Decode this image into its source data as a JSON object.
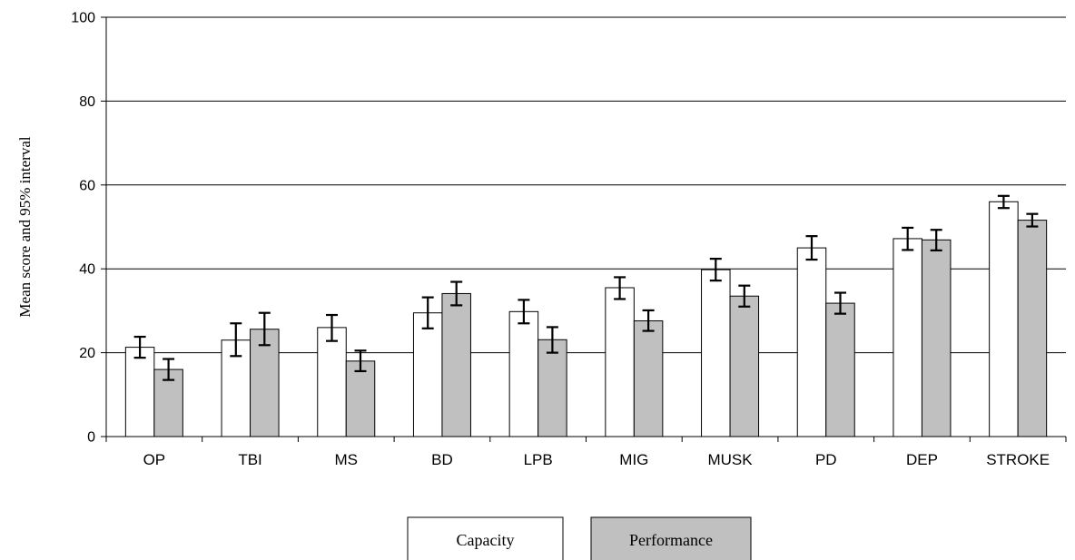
{
  "chart_data": {
    "type": "bar",
    "ylabel": "Mean score and 95% interval",
    "ylim": [
      0,
      100
    ],
    "yticks": [
      0,
      20,
      40,
      60,
      80,
      100
    ],
    "grid": "horizontal",
    "legend_position": "bottom-center",
    "categories": [
      "OP",
      "TBI",
      "MS",
      "BD",
      "LPB",
      "MIG",
      "MUSK",
      "PD",
      "DEP",
      "STROKE"
    ],
    "series": [
      {
        "name": "Capacity",
        "color": "#ffffff",
        "values": [
          21.3,
          23.0,
          26.0,
          29.5,
          29.8,
          35.5,
          39.8,
          45.0,
          47.2,
          56.0
        ],
        "ci_low": [
          18.8,
          19.2,
          22.8,
          25.8,
          27.0,
          32.8,
          37.2,
          42.2,
          44.5,
          54.5
        ],
        "ci_high": [
          23.8,
          27.0,
          29.0,
          33.2,
          32.6,
          38.0,
          42.4,
          47.8,
          49.8,
          57.4
        ]
      },
      {
        "name": "Performance",
        "color": "#c0c0c0",
        "values": [
          16.0,
          25.6,
          18.0,
          34.1,
          23.1,
          27.6,
          33.5,
          31.8,
          46.9,
          51.6
        ],
        "ci_low": [
          13.5,
          21.8,
          15.6,
          31.3,
          20.0,
          25.2,
          31.0,
          29.3,
          44.4,
          50.1
        ],
        "ci_high": [
          18.5,
          29.5,
          20.5,
          36.9,
          26.1,
          30.1,
          36.0,
          34.3,
          49.3,
          53.1
        ]
      }
    ]
  }
}
